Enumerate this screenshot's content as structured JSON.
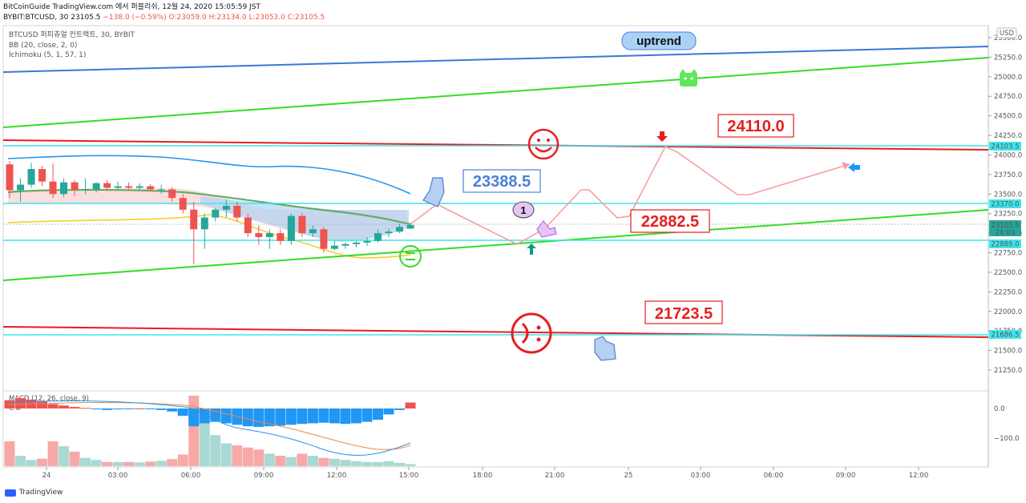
{
  "header": {
    "line1": "BitCoinGuide TradingView.com 에서 퍼블리쉬, 12월 24, 2020 15:05:59 JST",
    "symbol": "BYBIT:BTCUSD, 30",
    "last": "23105.5",
    "change": "−138.0 (−0.59%)",
    "ohlc": "O:23059.0 H:23134.0 L:23053.0 C:23105.5"
  },
  "legend": {
    "instrument": "BTCUSD 퍼피츄얼 컨트랙트, 30, BYBIT",
    "bb": "BB (20, close, 2, 0)",
    "ichimoku": "Ichimoku (5, 1, 57, 1)",
    "macd": "MACD (12, 26, close, 9)",
    "macd_sub": "분할"
  },
  "currency": "USD",
  "y_ticks": [
    "25500.0",
    "25250.0",
    "25000.0",
    "24750.0",
    "24500.0",
    "24250.0",
    "24000.0",
    "23750.0",
    "23500.0",
    "23250.0",
    "23000.0",
    "22750.0",
    "22500.0",
    "22250.0",
    "22000.0",
    "21750.0",
    "21500.0",
    "21250.0"
  ],
  "price_tags": {
    "t24103": "24103.5",
    "t23370": "23370.0",
    "t23105": "23105.5",
    "countdown": "24:03",
    "t22889": "22889.0",
    "t21686": "21686.5"
  },
  "macd_ticks": [
    "0.0",
    "−100.0"
  ],
  "x_ticks": [
    "24",
    "03:00",
    "06:00",
    "09:00",
    "12:00",
    "15:00",
    "18:00",
    "21:00",
    "25",
    "03:00",
    "06:00",
    "09:00",
    "12:00"
  ],
  "annotations": {
    "uptrend": "uptrend",
    "a24110": "24110.0",
    "a23388": "23388.5",
    "a22882": "22882.5",
    "a21723": "21723.5",
    "marker1": "1"
  },
  "colors": {
    "blue_trend": "#3a78d6",
    "green_trend": "#33dd22",
    "red_line": "#e61e1e",
    "cyan_line": "#3ee6ec",
    "label_red": "#e61e1e",
    "label_blue": "#4d7fd6"
  },
  "footer": {
    "brand": "TradingView"
  },
  "chart_data": {
    "type": "candlestick",
    "candles": [
      {
        "o": 23880,
        "h": 23920,
        "l": 23450,
        "c": 23550
      },
      {
        "o": 23550,
        "h": 23700,
        "l": 23400,
        "c": 23620
      },
      {
        "o": 23620,
        "h": 23900,
        "l": 23580,
        "c": 23820
      },
      {
        "o": 23820,
        "h": 23860,
        "l": 23600,
        "c": 23660
      },
      {
        "o": 23660,
        "h": 23890,
        "l": 23450,
        "c": 23500
      },
      {
        "o": 23500,
        "h": 23700,
        "l": 23460,
        "c": 23650
      },
      {
        "o": 23650,
        "h": 23680,
        "l": 23480,
        "c": 23550
      },
      {
        "o": 23550,
        "h": 23700,
        "l": 23500,
        "c": 23560
      },
      {
        "o": 23560,
        "h": 23650,
        "l": 23520,
        "c": 23640
      },
      {
        "o": 23640,
        "h": 23680,
        "l": 23540,
        "c": 23580
      },
      {
        "o": 23580,
        "h": 23660,
        "l": 23560,
        "c": 23600
      },
      {
        "o": 23600,
        "h": 23650,
        "l": 23560,
        "c": 23580
      },
      {
        "o": 23580,
        "h": 23640,
        "l": 23560,
        "c": 23600
      },
      {
        "o": 23600,
        "h": 23630,
        "l": 23540,
        "c": 23560
      },
      {
        "o": 23560,
        "h": 23620,
        "l": 23500,
        "c": 23560
      },
      {
        "o": 23560,
        "h": 23590,
        "l": 23400,
        "c": 23450
      },
      {
        "o": 23450,
        "h": 23500,
        "l": 23250,
        "c": 23300
      },
      {
        "o": 23300,
        "h": 23400,
        "l": 22600,
        "c": 23050
      },
      {
        "o": 23050,
        "h": 23250,
        "l": 22800,
        "c": 23200
      },
      {
        "o": 23200,
        "h": 23320,
        "l": 23150,
        "c": 23300
      },
      {
        "o": 23300,
        "h": 23430,
        "l": 23200,
        "c": 23350
      },
      {
        "o": 23350,
        "h": 23400,
        "l": 23150,
        "c": 23200
      },
      {
        "o": 23200,
        "h": 23250,
        "l": 22950,
        "c": 23000
      },
      {
        "o": 23000,
        "h": 23100,
        "l": 22850,
        "c": 22950
      },
      {
        "o": 22950,
        "h": 23050,
        "l": 22800,
        "c": 23000
      },
      {
        "o": 23000,
        "h": 23050,
        "l": 22850,
        "c": 22900
      },
      {
        "o": 22900,
        "h": 23250,
        "l": 22850,
        "c": 23220
      },
      {
        "o": 23220,
        "h": 23260,
        "l": 22950,
        "c": 23000
      },
      {
        "o": 23000,
        "h": 23100,
        "l": 22950,
        "c": 23050
      },
      {
        "o": 23050,
        "h": 23080,
        "l": 22750,
        "c": 22800
      },
      {
        "o": 22800,
        "h": 22900,
        "l": 22780,
        "c": 22840
      },
      {
        "o": 22840,
        "h": 22880,
        "l": 22800,
        "c": 22860
      },
      {
        "o": 22860,
        "h": 22900,
        "l": 22820,
        "c": 22880
      },
      {
        "o": 22880,
        "h": 22950,
        "l": 22840,
        "c": 22900
      },
      {
        "o": 22900,
        "h": 23050,
        "l": 22880,
        "c": 23000
      },
      {
        "o": 23000,
        "h": 23060,
        "l": 22950,
        "c": 23020
      },
      {
        "o": 23020,
        "h": 23120,
        "l": 23000,
        "c": 23080
      },
      {
        "o": 23059,
        "h": 23134,
        "l": 23053,
        "c": 23105.5
      }
    ],
    "macd_hist": [
      28,
      35,
      30,
      25,
      15,
      10,
      5,
      2,
      -3,
      -5,
      -3,
      -2,
      0,
      -1,
      -5,
      -10,
      -25,
      -60,
      -50,
      -45,
      -50,
      -55,
      -60,
      -62,
      -60,
      -58,
      -55,
      -52,
      -50,
      -48,
      -50,
      -52,
      -50,
      -45,
      -38,
      -20,
      -5,
      20
    ],
    "volume": [
      60,
      25,
      15,
      18,
      60,
      48,
      35,
      20,
      15,
      10,
      10,
      10,
      9,
      11,
      13,
      17,
      28,
      170,
      110,
      75,
      55,
      50,
      45,
      40,
      30,
      25,
      22,
      30,
      25,
      20,
      18,
      15,
      12,
      10,
      10,
      12,
      8,
      5
    ],
    "ylim": [
      21000,
      25600
    ]
  }
}
